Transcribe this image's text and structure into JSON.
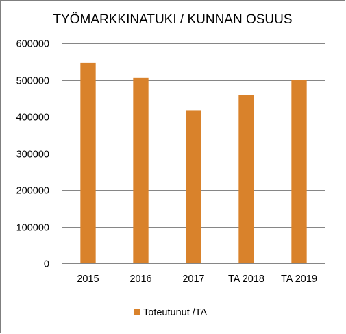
{
  "chart_data": {
    "type": "bar",
    "title": "TYÖMARKKINATUKI  / KUNNAN  OSUUS",
    "categories": [
      "2015",
      "2016",
      "2017",
      "TA 2018",
      "TA 2019"
    ],
    "series": [
      {
        "name": "Toteutunut /TA",
        "values": [
          546000,
          505000,
          416000,
          459000,
          500000
        ]
      }
    ],
    "ylim": [
      0,
      600000
    ],
    "yticks": [
      "0",
      "100000",
      "200000",
      "300000",
      "400000",
      "500000",
      "600000"
    ],
    "grid": true,
    "legend_position": "bottom",
    "colors": {
      "bar": "#D9822B",
      "grid": "#868686",
      "border": "#7F7F7F"
    }
  }
}
